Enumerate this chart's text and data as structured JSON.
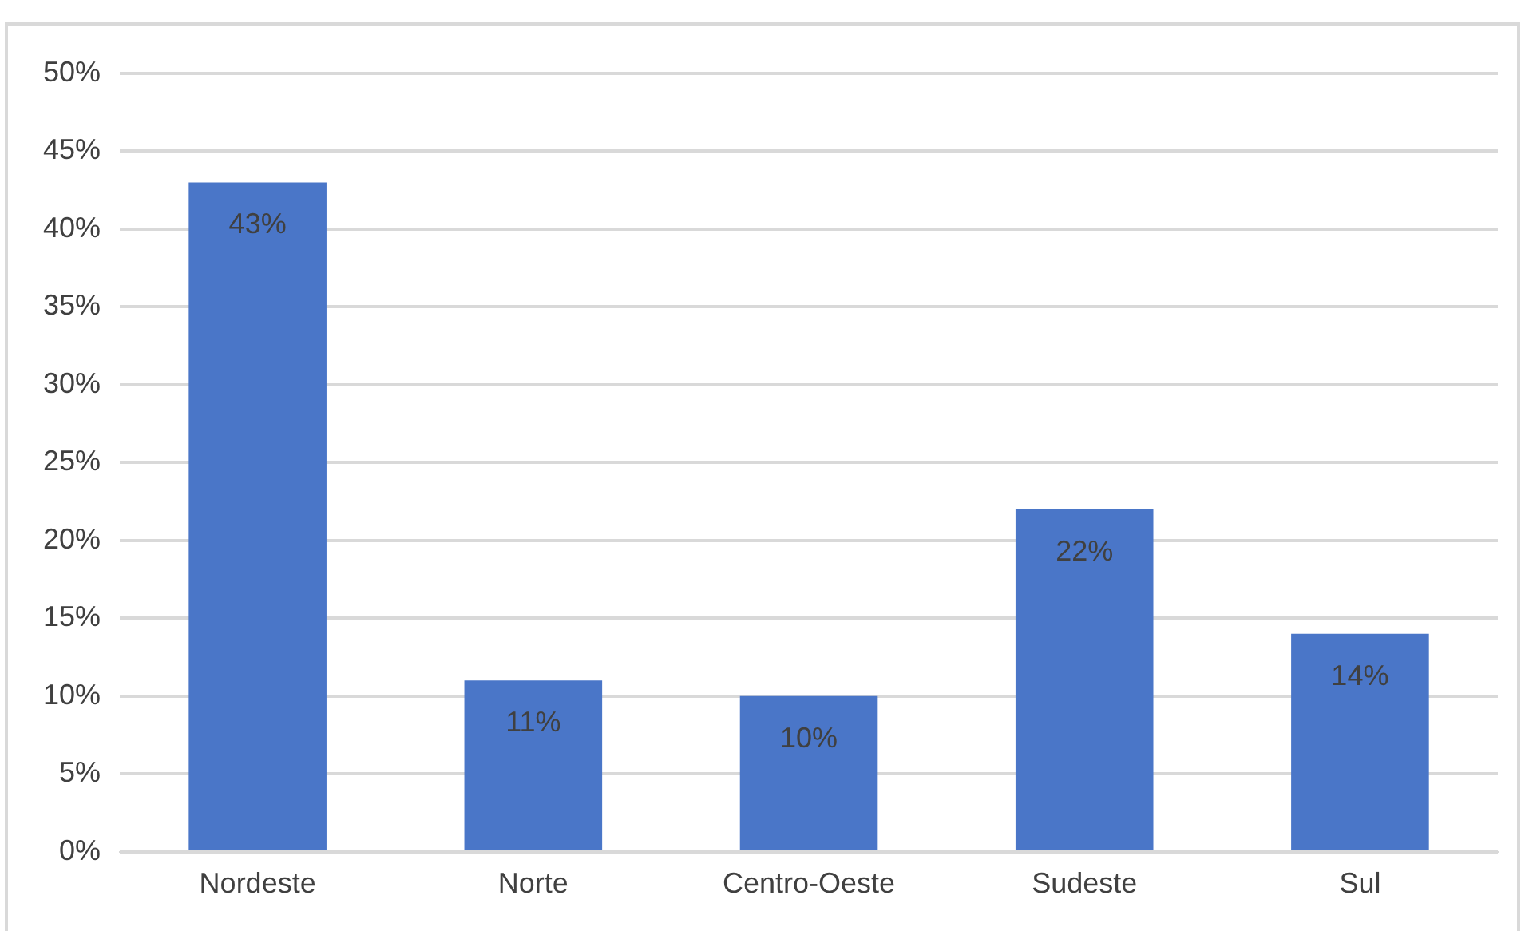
{
  "chart_data": {
    "type": "bar",
    "categories": [
      "Nordeste",
      "Norte",
      "Centro-Oeste",
      "Sudeste",
      "Sul"
    ],
    "values": [
      43,
      11,
      10,
      22,
      14
    ],
    "value_labels": [
      "43%",
      "11%",
      "10%",
      "22%",
      "14%"
    ],
    "color": "#4a76c8",
    "ylim": [
      0,
      50
    ],
    "yticks": [
      {
        "value": 0,
        "label": "0%"
      },
      {
        "value": 5,
        "label": "5%"
      },
      {
        "value": 10,
        "label": "10%"
      },
      {
        "value": 15,
        "label": "15%"
      },
      {
        "value": 20,
        "label": "20%"
      },
      {
        "value": 25,
        "label": "25%"
      },
      {
        "value": 30,
        "label": "30%"
      },
      {
        "value": 35,
        "label": "35%"
      },
      {
        "value": 40,
        "label": "40%"
      },
      {
        "value": 45,
        "label": "45%"
      },
      {
        "value": 50,
        "label": "50%"
      }
    ],
    "grid": "y",
    "legend": false
  }
}
